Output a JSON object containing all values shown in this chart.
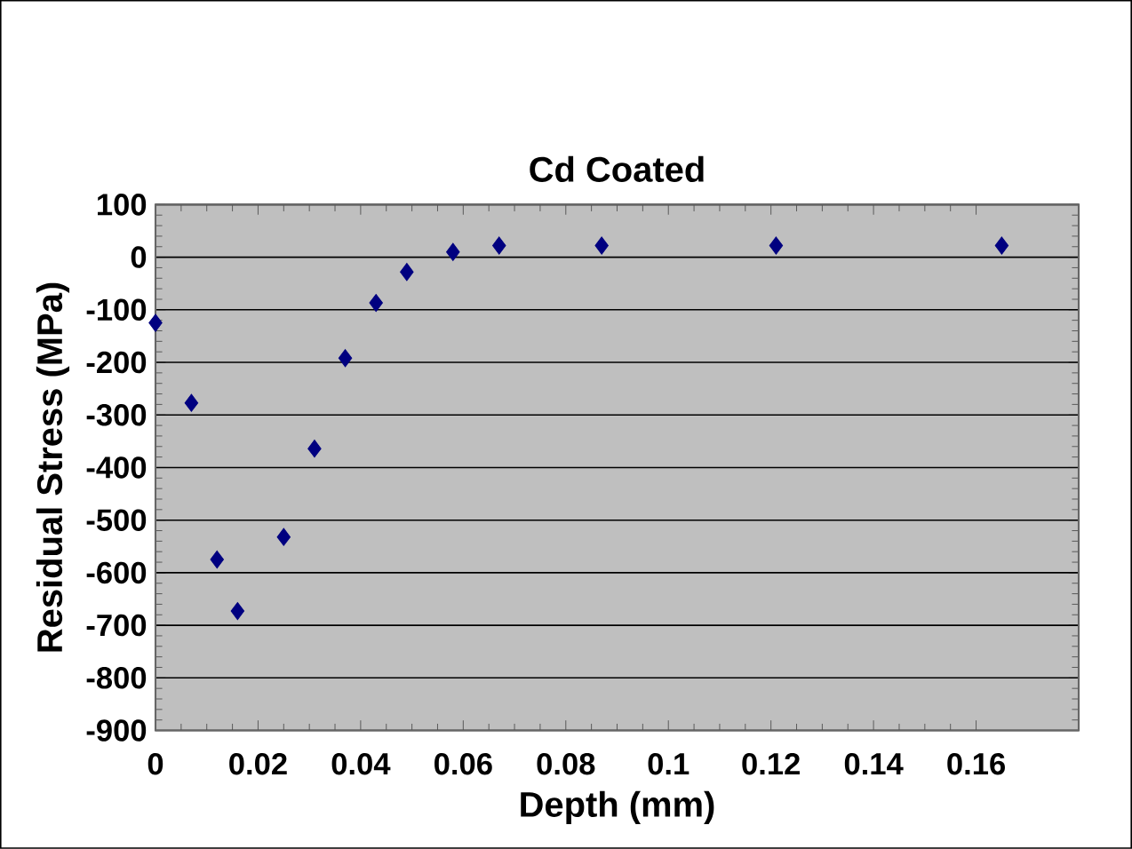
{
  "chart_data": {
    "type": "scatter",
    "title": "Cd Coated",
    "xlabel": "Depth (mm)",
    "ylabel": "Residual Stress (MPa)",
    "x": [
      0,
      0.007,
      0.012,
      0.016,
      0.025,
      0.031,
      0.037,
      0.043,
      0.049,
      0.058,
      0.067,
      0.087,
      0.121,
      0.165
    ],
    "values": [
      -125,
      -277,
      -575,
      -673,
      -532,
      -364,
      -192,
      -87,
      -28,
      10,
      22,
      22,
      22,
      22
    ],
    "color": "#000080",
    "marker": "diamond",
    "grid": "y",
    "xlim": [
      0,
      0.18
    ],
    "xticks": [
      0,
      0.02,
      0.04,
      0.06,
      0.08,
      0.1,
      0.12,
      0.14,
      0.16
    ],
    "ylim": [
      -900,
      100
    ],
    "yticks": [
      -900,
      -800,
      -700,
      -600,
      -500,
      -400,
      -300,
      -200,
      -100,
      0,
      100
    ]
  }
}
